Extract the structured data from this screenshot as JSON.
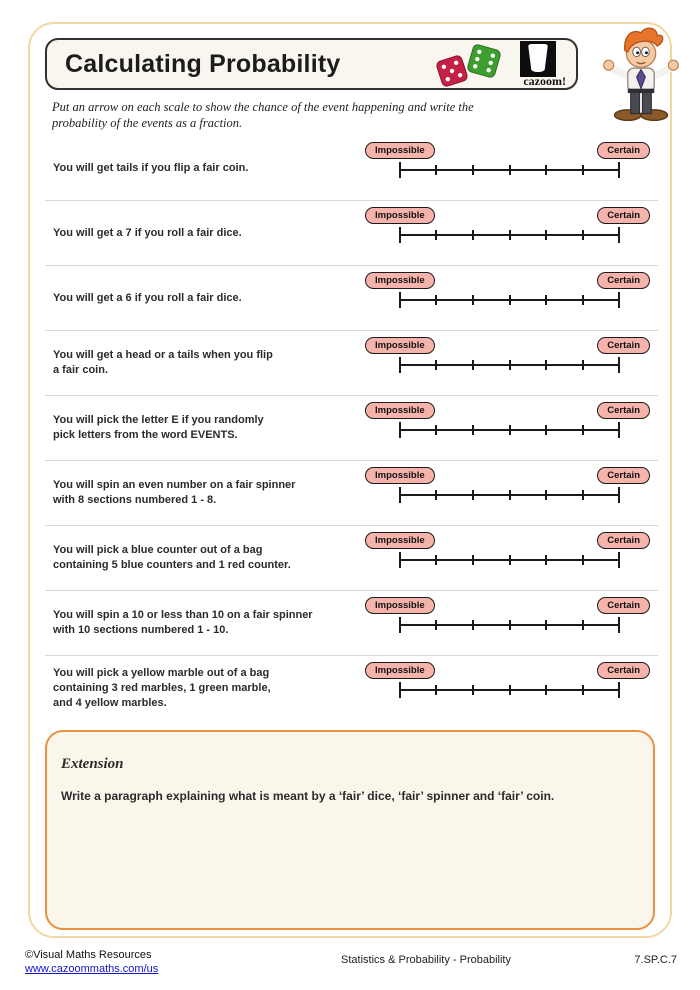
{
  "header": {
    "title": "Calculating Probability",
    "logo_text": "cazoom!",
    "instructions": "Put an arrow on each scale to show the chance of the event happening and write the\nprobability of the events as a fraction."
  },
  "scale": {
    "impossible_label": "Impossible",
    "certain_label": "Certain",
    "tick_count": 7
  },
  "questions": [
    {
      "text": "You will get tails if you flip a fair coin."
    },
    {
      "text": "You will get a 7 if you roll a fair dice."
    },
    {
      "text": "You will get a 6 if you roll a fair dice."
    },
    {
      "text": "You will get a head or a tails when you flip\na fair coin."
    },
    {
      "text": "You will pick the letter E if you randomly\npick letters from the word EVENTS."
    },
    {
      "text": "You will spin an even number on a fair spinner\nwith 8 sections numbered 1 - 8."
    },
    {
      "text": "You will pick a blue counter out of a bag\ncontaining 5 blue counters and 1 red counter."
    },
    {
      "text": "You will spin a 10 or less than 10 on a fair spinner\nwith 10 sections numbered 1 - 10."
    },
    {
      "text": "You will pick a yellow marble out of a bag\ncontaining 3 red marbles, 1 green marble,\nand 4 yellow marbles."
    }
  ],
  "extension": {
    "heading": "Extension",
    "text": "Write a paragraph explaining what is meant by a ‘fair’ dice, ‘fair’ spinner and ‘fair’ coin."
  },
  "footer": {
    "copyright": "©Visual Maths Resources",
    "link": "www.cazoommaths.com/us",
    "center": "Statistics & Probability - Probability",
    "standard": "7.SP.C.7"
  },
  "colors": {
    "pill_bg": "#f5b3ab",
    "page_border": "#f2d7a4",
    "extension_border": "#e8923d",
    "dice_red": "#c32146",
    "dice_green": "#3f9e2f",
    "link_blue": "#1414cc"
  }
}
